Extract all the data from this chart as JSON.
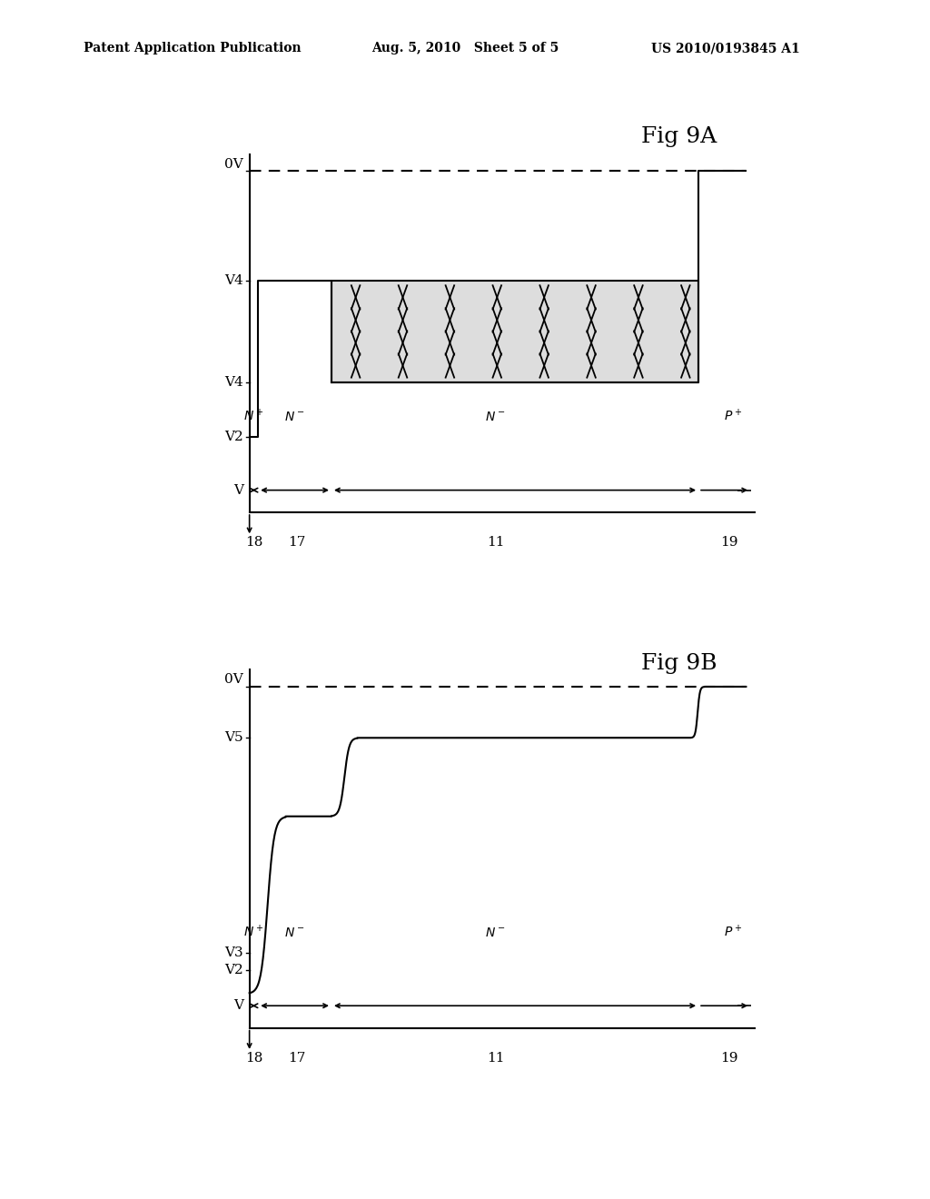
{
  "header_left": "Patent Application Publication",
  "header_center": "Aug. 5, 2010   Sheet 5 of 5",
  "header_right": "US 2010/0193845 A1",
  "fig9a_title": "Fig 9A",
  "fig9b_title": "Fig 9B",
  "background_color": "#ffffff",
  "line_color": "#000000"
}
